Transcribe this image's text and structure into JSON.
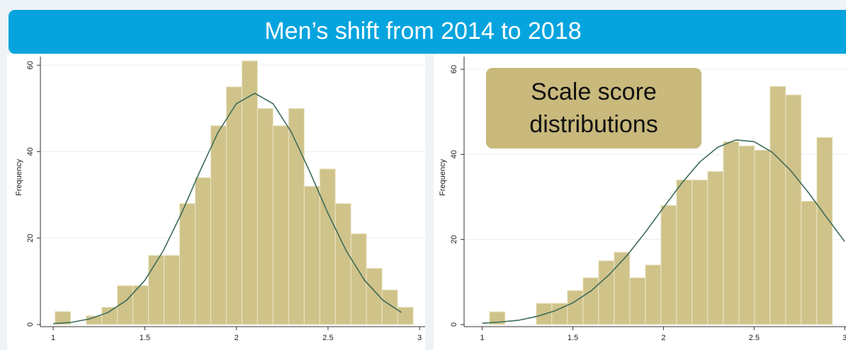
{
  "title": "Men’s shift from 2014 to 2018",
  "annotation": [
    "Scale score",
    "distributions"
  ],
  "chart_data": [
    {
      "type": "histogram",
      "ylabel": "Frequency",
      "bins": [
        1.01,
        1.095,
        1.18,
        1.265,
        1.35,
        1.435,
        1.52,
        1.605,
        1.69,
        1.775,
        1.86,
        1.945,
        2.03,
        2.115,
        2.2,
        2.285,
        2.37,
        2.455,
        2.54,
        2.625,
        2.71,
        2.795,
        2.88,
        2.965
      ],
      "counts": [
        3,
        0,
        2,
        4,
        9,
        9,
        16,
        16,
        28,
        34,
        46,
        55,
        61,
        50,
        46,
        50,
        32,
        36,
        28,
        21,
        13,
        8,
        4
      ],
      "color": "#cfc38a",
      "curve": {
        "color": "#3d6b5a",
        "x": [
          1.0,
          1.1,
          1.2,
          1.3,
          1.4,
          1.5,
          1.6,
          1.7,
          1.8,
          1.9,
          2.0,
          2.1,
          2.2,
          2.3,
          2.4,
          2.5,
          2.6,
          2.7,
          2.8,
          2.9
        ],
        "y": [
          0.2,
          0.5,
          1.3,
          2.8,
          5.6,
          10.2,
          17.0,
          25.7,
          35.4,
          44.5,
          51.1,
          53.5,
          51.1,
          44.5,
          35.4,
          25.7,
          17.0,
          10.2,
          5.6,
          2.8
        ]
      },
      "xlim": [
        0.93,
        3.03
      ],
      "ylim": [
        -0.5,
        62
      ],
      "xticks": [
        1,
        1.5,
        2,
        2.5,
        3
      ],
      "yticks": [
        0,
        20,
        40,
        60
      ],
      "grid": true
    },
    {
      "type": "histogram",
      "ylabel": "Frequency",
      "bins": [
        1.04,
        1.126,
        1.212,
        1.298,
        1.384,
        1.47,
        1.556,
        1.642,
        1.728,
        1.814,
        1.9,
        1.986,
        2.072,
        2.158,
        2.244,
        2.33,
        2.416,
        2.502,
        2.588,
        2.674,
        2.76,
        2.846,
        2.932
      ],
      "counts": [
        3,
        0,
        0,
        5,
        5,
        8,
        11,
        15,
        17,
        11,
        14,
        28,
        34,
        34,
        36,
        43,
        42,
        41,
        56,
        54,
        29,
        44
      ],
      "color": "#cfc38a",
      "curve": {
        "color": "#3d6b5a",
        "x": [
          1.0,
          1.1,
          1.2,
          1.3,
          1.4,
          1.5,
          1.6,
          1.7,
          1.8,
          1.9,
          2.0,
          2.1,
          2.2,
          2.3,
          2.4,
          2.5,
          2.6,
          2.7,
          2.8,
          2.9,
          3.0
        ],
        "y": [
          0.3,
          0.6,
          1.0,
          1.9,
          3.2,
          5.1,
          7.9,
          11.7,
          16.3,
          21.7,
          27.5,
          33.2,
          38.2,
          41.7,
          43.4,
          43.0,
          40.5,
          36.3,
          31.0,
          25.2,
          19.5
        ]
      },
      "xlim": [
        0.9,
        3.05
      ],
      "ylim": [
        -0.5,
        63
      ],
      "xticks": [
        1,
        1.5,
        2,
        2.5,
        3
      ],
      "yticks": [
        0,
        20,
        40,
        60
      ],
      "grid": true
    }
  ]
}
